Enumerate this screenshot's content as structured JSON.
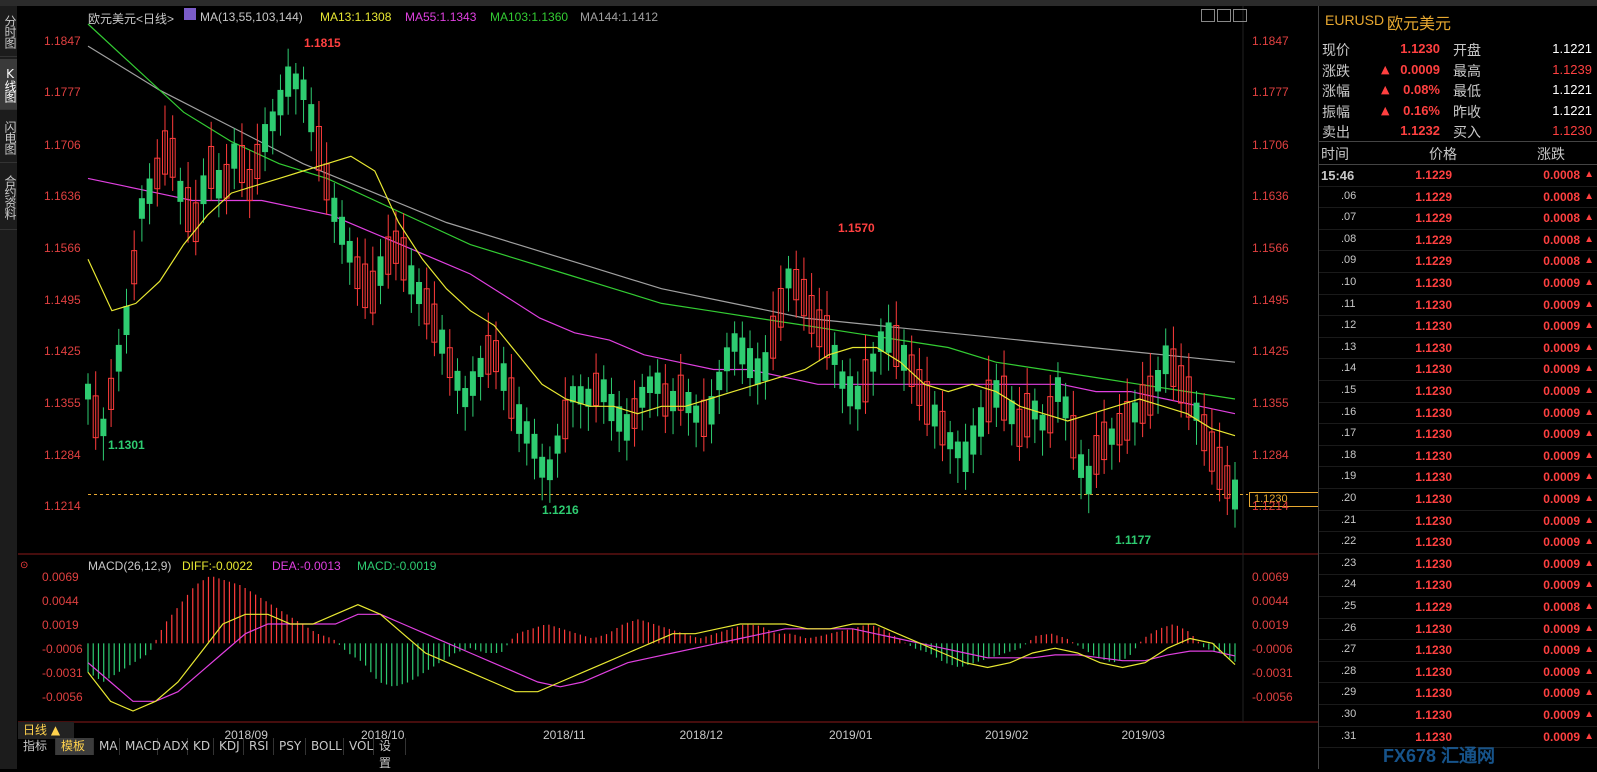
{
  "top_bar_label": "",
  "left_tabs": [
    {
      "label": "分时图",
      "active": false
    },
    {
      "label": "K线图",
      "active": true
    },
    {
      "label": "闪电图",
      "active": false
    },
    {
      "label": "合约资料",
      "active": false
    }
  ],
  "chart_header": {
    "title": "欧元美元<日线>",
    "ma_label": "MA(13,55,103,144)",
    "ma13": "MA13:1.1308",
    "ma55": "MA55:1.1343",
    "ma103": "MA103:1.1360",
    "ma144": "MA144:1.1412"
  },
  "macd_header": {
    "label": "MACD(26,12,9)",
    "diff": "DIFF:-0.0022",
    "dea": "DEA:-0.0013",
    "macd": "MACD:-0.0019"
  },
  "annotations": {
    "high1": "1.1815",
    "low1": "1.1301",
    "high2": "1.1570",
    "low2": "1.1216",
    "low3": "1.1177",
    "current": "1.1230"
  },
  "bottom": {
    "period": "日线 ▲",
    "tabs": [
      "指标",
      "模板",
      "MA",
      "MACD",
      "ADX",
      "KD",
      "KDJ",
      "RSI",
      "PSY",
      "BOLL",
      "VOL",
      "设置"
    ]
  },
  "colors": {
    "up": "#ff3b3b",
    "down": "#2ecc71",
    "ma13": "#e8e832",
    "ma55": "#e040e0",
    "ma103": "#33cc33",
    "ma144": "#a0a0a0"
  },
  "chart_data": {
    "type": "candlestick",
    "symbol": "EURUSD",
    "price_axis_ticks": [
      "1.1847",
      "1.1777",
      "1.1706",
      "1.1636",
      "1.1566",
      "1.1495",
      "1.1425",
      "1.1355",
      "1.1284",
      "1.1214"
    ],
    "price_range": [
      1.116,
      1.187
    ],
    "macd_axis_ticks": [
      "0.0069",
      "0.0044",
      "0.0019",
      "-0.0006",
      "-0.0031",
      "-0.0056"
    ],
    "macd_range": [
      -0.007,
      0.008
    ],
    "date_labels": [
      "2018/09",
      "2018/10",
      "2018/11",
      "2018/12",
      "2019/01",
      "2019/02",
      "2019/03"
    ],
    "date_label_positions": [
      0.105,
      0.21,
      0.35,
      0.455,
      0.57,
      0.69,
      0.795
    ],
    "close_path": [
      1.137,
      1.131,
      1.139,
      1.148,
      1.162,
      1.166,
      1.171,
      1.163,
      1.16,
      1.168,
      1.164,
      1.17,
      1.165,
      1.171,
      1.175,
      1.18,
      1.178,
      1.171,
      1.163,
      1.158,
      1.153,
      1.15,
      1.155,
      1.157,
      1.152,
      1.149,
      1.145,
      1.14,
      1.136,
      1.14,
      1.143,
      1.138,
      1.133,
      1.13,
      1.125,
      1.131,
      1.137,
      1.136,
      1.138,
      1.134,
      1.132,
      1.136,
      1.139,
      1.135,
      1.137,
      1.134,
      1.133,
      1.14,
      1.144,
      1.141,
      1.139,
      1.146,
      1.153,
      1.15,
      1.146,
      1.144,
      1.138,
      1.136,
      1.14,
      1.145,
      1.143,
      1.14,
      1.136,
      1.133,
      1.13,
      1.128,
      1.132,
      1.137,
      1.136,
      1.132,
      1.135,
      1.132,
      1.138,
      1.131,
      1.124,
      1.13,
      1.131,
      1.133,
      1.135,
      1.137,
      1.142,
      1.138,
      1.135,
      1.13,
      1.126,
      1.123
    ],
    "ma13_path": [
      1.155,
      1.148,
      1.149,
      1.152,
      1.157,
      1.161,
      1.164,
      1.165,
      1.166,
      1.167,
      1.168,
      1.169,
      1.167,
      1.16,
      1.155,
      1.151,
      1.148,
      1.146,
      1.142,
      1.138,
      1.136,
      1.135,
      1.135,
      1.134,
      1.135,
      1.135,
      1.136,
      1.137,
      1.138,
      1.139,
      1.14,
      1.142,
      1.143,
      1.143,
      1.141,
      1.138,
      1.137,
      1.138,
      1.137,
      1.135,
      1.134,
      1.133,
      1.134,
      1.135,
      1.136,
      1.135,
      1.134,
      1.132,
      1.131
    ],
    "ma55_path": [
      1.166,
      1.165,
      1.164,
      1.163,
      1.163,
      1.163,
      1.162,
      1.161,
      1.159,
      1.157,
      1.155,
      1.153,
      1.15,
      1.147,
      1.145,
      1.144,
      1.142,
      1.141,
      1.14,
      1.14,
      1.139,
      1.138,
      1.138,
      1.138,
      1.138,
      1.138,
      1.138,
      1.138,
      1.138,
      1.137,
      1.137,
      1.136,
      1.135,
      1.134
    ],
    "ma103_path": [
      1.187,
      1.181,
      1.175,
      1.171,
      1.168,
      1.166,
      1.163,
      1.16,
      1.157,
      1.155,
      1.153,
      1.151,
      1.149,
      1.148,
      1.147,
      1.146,
      1.145,
      1.144,
      1.143,
      1.141,
      1.14,
      1.139,
      1.138,
      1.137,
      1.136
    ],
    "ma144_path": [
      1.184,
      1.178,
      1.173,
      1.168,
      1.164,
      1.16,
      1.157,
      1.154,
      1.151,
      1.149,
      1.147,
      1.146,
      1.145,
      1.144,
      1.143,
      1.142,
      1.141
    ],
    "macd_hist": [
      -0.003,
      -0.004,
      -0.003,
      -0.002,
      -0.001,
      0.002,
      0.004,
      0.006,
      0.007,
      0.0065,
      0.006,
      0.005,
      0.004,
      0.003,
      0.002,
      0.001,
      0.0005,
      -0.001,
      -0.002,
      -0.004,
      -0.0045,
      -0.004,
      -0.003,
      -0.002,
      -0.001,
      -0.0005,
      -0.001,
      -0.001,
      0.001,
      0.0015,
      0.002,
      0.0015,
      0.001,
      0.0005,
      0.001,
      0.002,
      0.0025,
      0.002,
      0.0015,
      0.001,
      0.0005,
      0.001,
      0.0015,
      0.002,
      0.0018,
      0.001,
      0.001,
      0.0005,
      0.0008,
      0.0012,
      0.0015,
      0.002,
      0.0015,
      0.0005,
      -0.0005,
      -0.001,
      -0.002,
      -0.0025,
      -0.002,
      -0.0015,
      -0.001,
      -0.0005,
      0.0008,
      0.001,
      0.0005,
      -0.0005,
      -0.0015,
      -0.002,
      -0.0015,
      0.0005,
      0.0015,
      0.002,
      0.0012,
      -0.0005,
      -0.001,
      -0.0019
    ],
    "diff_path": [
      -0.003,
      -0.006,
      -0.007,
      -0.006,
      -0.004,
      -0.001,
      0.002,
      0.003,
      0.003,
      0.002,
      0.002,
      0.003,
      0.004,
      0.003,
      0.001,
      -0.001,
      -0.002,
      -0.003,
      -0.004,
      -0.005,
      -0.005,
      -0.004,
      -0.003,
      -0.002,
      -0.001,
      0.0,
      0.001,
      0.001,
      0.0015,
      0.002,
      0.002,
      0.002,
      0.0015,
      0.0015,
      0.002,
      0.002,
      0.001,
      0.0,
      -0.001,
      -0.002,
      -0.0025,
      -0.002,
      -0.001,
      -0.0005,
      -0.001,
      -0.002,
      -0.0025,
      -0.002,
      -0.0005,
      0.0005,
      0.0,
      -0.0022
    ],
    "dea_path": [
      -0.002,
      -0.004,
      -0.006,
      -0.006,
      -0.005,
      -0.003,
      -0.001,
      0.001,
      0.002,
      0.002,
      0.002,
      0.002,
      0.003,
      0.003,
      0.002,
      0.001,
      0.0,
      -0.001,
      -0.002,
      -0.003,
      -0.004,
      -0.0045,
      -0.004,
      -0.003,
      -0.002,
      -0.0015,
      -0.001,
      -0.0005,
      0.0,
      0.0005,
      0.001,
      0.0015,
      0.0015,
      0.0015,
      0.0015,
      0.001,
      0.0005,
      0.0,
      -0.0005,
      -0.001,
      -0.0015,
      -0.0015,
      -0.0015,
      -0.0012,
      -0.0012,
      -0.0015,
      -0.0018,
      -0.0018,
      -0.0012,
      -0.0008,
      -0.0008,
      -0.0013
    ]
  },
  "quote_panel": {
    "symbol": "EURUSD",
    "name": "欧元美元",
    "rows": [
      {
        "k1": "现价",
        "v1": "1.1230",
        "v1_color": "#ff4040",
        "k2": "开盘",
        "v2": "1.1221",
        "v2_color": "#ffffff"
      },
      {
        "k1": "涨跌",
        "v1": "0.0009",
        "v1_color": "#ff4040",
        "up1": true,
        "k2": "最高",
        "v2": "1.1239",
        "v2_color": "#ff4040"
      },
      {
        "k1": "涨幅",
        "v1": "0.08%",
        "v1_color": "#ff4040",
        "up1": true,
        "k2": "最低",
        "v2": "1.1221",
        "v2_color": "#ffffff"
      },
      {
        "k1": "振幅",
        "v1": "0.16%",
        "v1_color": "#ff4040",
        "up1": true,
        "k2": "昨收",
        "v2": "1.1221",
        "v2_color": "#ffffff"
      },
      {
        "k1": "卖出",
        "v1": "1.1232",
        "v1_color": "#ff4040",
        "k2": "买入",
        "v2": "1.1230",
        "v2_color": "#ff4040"
      }
    ],
    "tick_headers": {
      "time": "时间",
      "price": "价格",
      "change": "涨跌"
    },
    "ticks": [
      {
        "t": "15:46",
        "p": "1.1229",
        "c": "0.0008"
      },
      {
        "t": ".06",
        "p": "1.1229",
        "c": "0.0008"
      },
      {
        "t": ".07",
        "p": "1.1229",
        "c": "0.0008"
      },
      {
        "t": ".08",
        "p": "1.1229",
        "c": "0.0008"
      },
      {
        "t": ".09",
        "p": "1.1229",
        "c": "0.0008"
      },
      {
        "t": ".10",
        "p": "1.1230",
        "c": "0.0009"
      },
      {
        "t": ".11",
        "p": "1.1230",
        "c": "0.0009"
      },
      {
        "t": ".12",
        "p": "1.1230",
        "c": "0.0009"
      },
      {
        "t": ".13",
        "p": "1.1230",
        "c": "0.0009"
      },
      {
        "t": ".14",
        "p": "1.1230",
        "c": "0.0009"
      },
      {
        "t": ".15",
        "p": "1.1230",
        "c": "0.0009"
      },
      {
        "t": ".16",
        "p": "1.1230",
        "c": "0.0009"
      },
      {
        "t": ".17",
        "p": "1.1230",
        "c": "0.0009"
      },
      {
        "t": ".18",
        "p": "1.1230",
        "c": "0.0009"
      },
      {
        "t": ".19",
        "p": "1.1230",
        "c": "0.0009"
      },
      {
        "t": ".20",
        "p": "1.1230",
        "c": "0.0009"
      },
      {
        "t": ".21",
        "p": "1.1230",
        "c": "0.0009"
      },
      {
        "t": ".22",
        "p": "1.1230",
        "c": "0.0009"
      },
      {
        "t": ".23",
        "p": "1.1230",
        "c": "0.0009"
      },
      {
        "t": ".24",
        "p": "1.1230",
        "c": "0.0009"
      },
      {
        "t": ".25",
        "p": "1.1229",
        "c": "0.0008"
      },
      {
        "t": ".26",
        "p": "1.1230",
        "c": "0.0009"
      },
      {
        "t": ".27",
        "p": "1.1230",
        "c": "0.0009"
      },
      {
        "t": ".28",
        "p": "1.1230",
        "c": "0.0009"
      },
      {
        "t": ".29",
        "p": "1.1230",
        "c": "0.0009"
      },
      {
        "t": ".30",
        "p": "1.1230",
        "c": "0.0009"
      },
      {
        "t": ".31",
        "p": "1.1230",
        "c": "0.0009"
      }
    ]
  },
  "watermark": "FX678 汇通网"
}
